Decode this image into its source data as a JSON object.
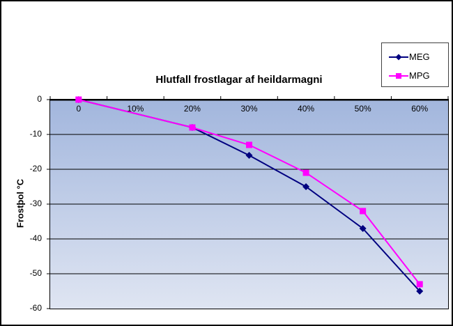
{
  "frame": {
    "background": "#FFFFFF",
    "border_color": "#000000"
  },
  "chart_data": {
    "type": "line",
    "title": "Hlutfall frostlagar af heildarmagni",
    "ylabel": "Frostþol °C",
    "xlabel": "",
    "categories": [
      "0",
      "10%",
      "20%",
      "30%",
      "40%",
      "50%",
      "60%"
    ],
    "series": [
      {
        "name": "MEG",
        "color": "#000080",
        "marker": "diamond",
        "values": [
          0,
          null,
          -8,
          -16,
          -25,
          -37,
          -55
        ]
      },
      {
        "name": "MPG",
        "color": "#FF00FF",
        "marker": "square",
        "values": [
          0,
          null,
          -8,
          -13,
          -21,
          -32,
          -53
        ]
      }
    ],
    "ylim": [
      -60,
      0
    ],
    "yticks": [
      0,
      -10,
      -20,
      -30,
      -40,
      -50,
      -60
    ],
    "grid": true,
    "legend_position": "top-right",
    "plot_gradient_top": "#a2b6dd",
    "plot_gradient_bottom": "#dfe5f2",
    "gridline_color": "#000000",
    "axis_color": "#000000"
  }
}
